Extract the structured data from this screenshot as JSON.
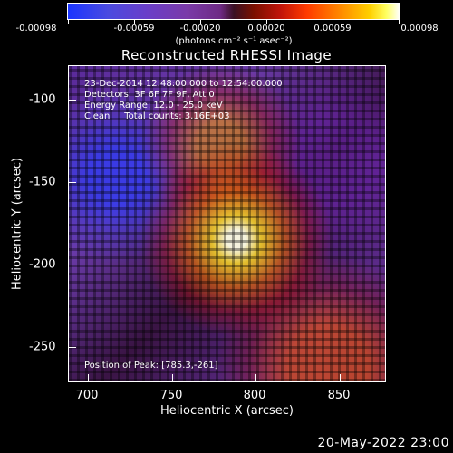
{
  "colorbar": {
    "ticks": [
      "-0.00098",
      "-0.00059",
      "-0.00020",
      "0.00020",
      "0.00059",
      "0.00098"
    ],
    "units": "(photons cm⁻² s⁻¹ asec⁻²)"
  },
  "title": "Reconstructed RHESSI Image",
  "info": {
    "time": "23-Dec-2014 12:48:00.000 to 12:54:00.000",
    "detectors": "Detectors: 3F 6F 7F 9F, Att 0",
    "energy": "Energy Range: 12.0 - 25.0 keV",
    "method": "Clean     Total counts: 3.16E+03",
    "peak": "Position of Peak: [785.3,-261]"
  },
  "axes": {
    "xlabel": "Heliocentric X (arcsec)",
    "ylabel": "Heliocentric Y (arcsec)",
    "xticks": [
      "700",
      "750",
      "800",
      "850"
    ],
    "yticks": [
      "-100",
      "-150",
      "-200",
      "-250"
    ]
  },
  "timestamp": "20-May-2022 23:00"
}
